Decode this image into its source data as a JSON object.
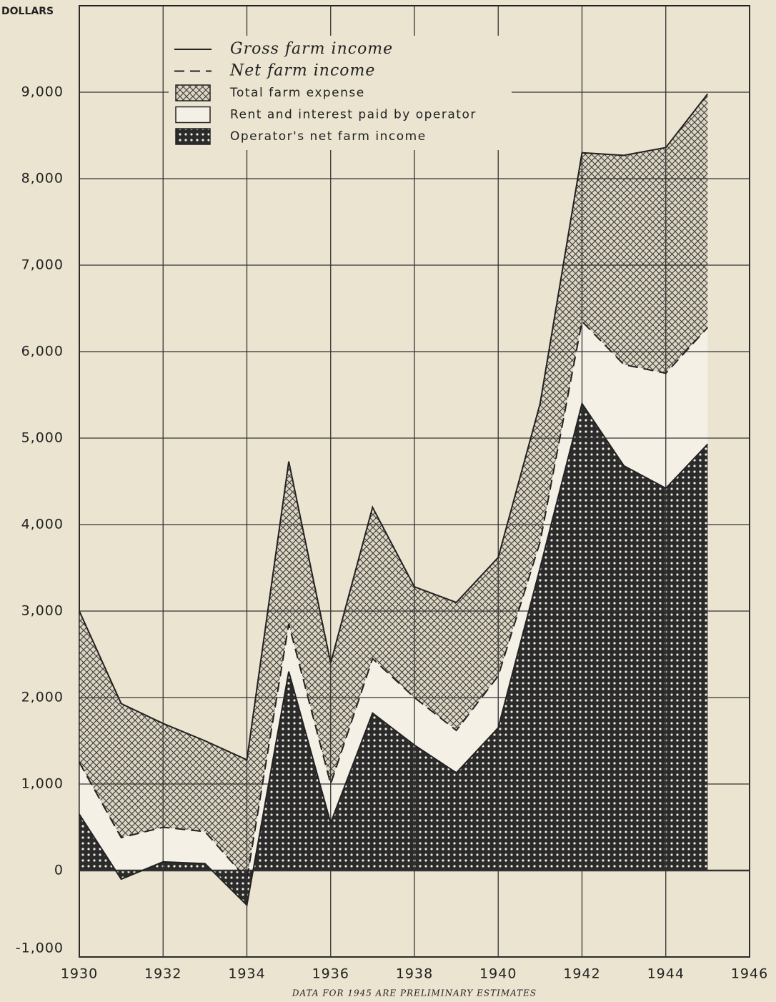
{
  "chart_data": {
    "type": "area",
    "y_axis_label": "DOLLARS",
    "footnote": "DATA FOR 1945 ARE PRELIMINARY ESTIMATES",
    "x": [
      1930,
      1931,
      1932,
      1933,
      1934,
      1935,
      1936,
      1937,
      1938,
      1939,
      1940,
      1941,
      1942,
      1943,
      1944,
      1945
    ],
    "series": [
      {
        "name": "Gross farm income",
        "style": "solid",
        "values": [
          3000,
          1930,
          1700,
          1500,
          1280,
          4730,
          2400,
          4200,
          3280,
          3100,
          3620,
          5400,
          8300,
          8270,
          8360,
          8980
        ]
      },
      {
        "name": "Net farm income",
        "style": "dashed",
        "values": [
          1250,
          380,
          500,
          450,
          -100,
          2850,
          1000,
          2450,
          2000,
          1620,
          2250,
          3800,
          6350,
          5850,
          5750,
          6280
        ]
      },
      {
        "name": "Operator's net farm income",
        "style": "dots",
        "values": [
          650,
          -100,
          100,
          80,
          -400,
          2300,
          550,
          1820,
          1450,
          1130,
          1650,
          3500,
          5400,
          4680,
          4420,
          4930
        ]
      }
    ],
    "bands": [
      "Total farm expense",
      "Rent and interest paid by operator"
    ],
    "xlim": [
      1930,
      1946
    ],
    "xticks": [
      1930,
      1932,
      1934,
      1936,
      1938,
      1940,
      1942,
      1944,
      1946
    ],
    "ylim": [
      -1000,
      10000
    ],
    "yticks": [
      {
        "value": -1000,
        "label": "-1,000"
      },
      0,
      {
        "value": 1000,
        "label": "1,000"
      },
      {
        "value": 2000,
        "label": "2,000"
      },
      {
        "value": 3000,
        "label": "3,000"
      },
      {
        "value": 4000,
        "label": "4,000"
      },
      {
        "value": 5000,
        "label": "5,000"
      },
      {
        "value": 6000,
        "label": "6,000"
      },
      {
        "value": 7000,
        "label": "7,000"
      },
      {
        "value": 8000,
        "label": "8,000"
      },
      {
        "value": 9000,
        "label": "9,000"
      }
    ],
    "grid": true
  }
}
